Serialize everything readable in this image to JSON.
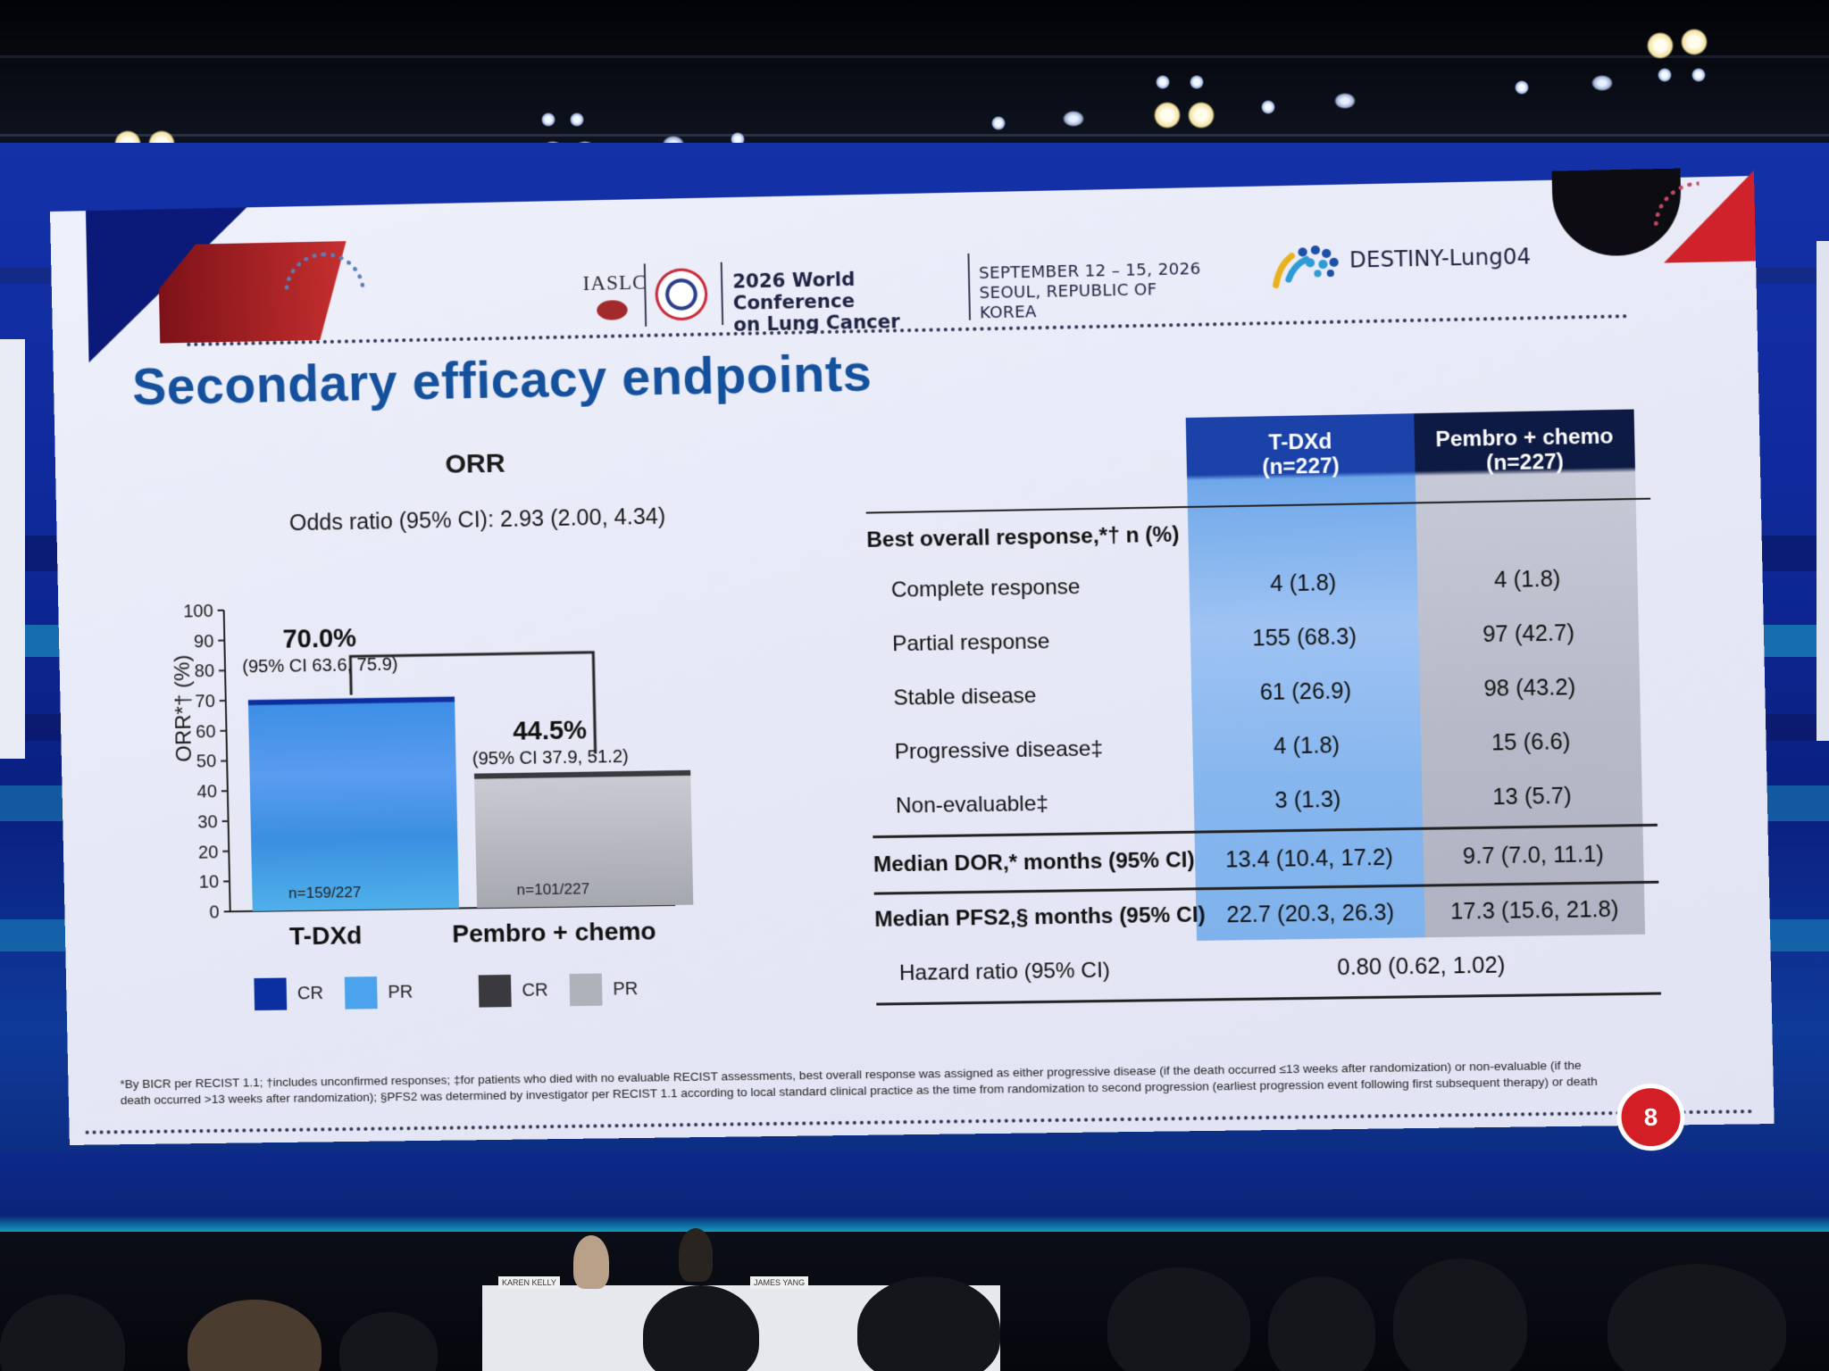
{
  "conference": {
    "society": "IASLC",
    "title_line1": "2026 World Conference",
    "title_line2": "on Lung Cancer",
    "date": "SEPTEMBER 12 – 15, 2026",
    "location": "SEOUL, REPUBLIC OF KOREA",
    "trial": "DESTINY-Lung04"
  },
  "slide": {
    "title": "Secondary efficacy endpoints",
    "page_number": "8"
  },
  "chart": {
    "title": "ORR",
    "odds_ratio": "Odds ratio (95% CI): 2.93 (2.00, 4.34)",
    "y_axis_title": "ORR*† (%)",
    "legend": {
      "cr": "CR",
      "pr": "PR"
    }
  },
  "chart_data": {
    "type": "bar",
    "title": "ORR",
    "ylabel": "ORR*† (%)",
    "ylim": [
      0,
      100
    ],
    "yticks": [
      "0",
      "10",
      "20",
      "30",
      "40",
      "50",
      "60",
      "70",
      "80",
      "90",
      "100"
    ],
    "categories": [
      "T-DXd",
      "Pembro + chemo"
    ],
    "series": [
      {
        "name": "CR",
        "values": [
          1.8,
          1.8
        ]
      },
      {
        "name": "PR",
        "values": [
          68.3,
          42.7
        ]
      }
    ],
    "totals": [
      70.0,
      44.5
    ],
    "value_labels": [
      "70.0%",
      "44.5%"
    ],
    "ci_labels": [
      "(95% CI 63.6, 75.9)",
      "(95% CI 37.9, 51.2)"
    ],
    "n_labels": [
      "n=159/227",
      "n=101/227"
    ],
    "colors": {
      "tdxd_cr": "#0b2fa0",
      "tdxd_pr": "#4aa3ec",
      "pembro_cr": "#3a3a3e",
      "pembro_pr": "#b0b2ba"
    }
  },
  "table": {
    "headers": [
      "T-DXd\n(n=227)",
      "Pembro + chemo\n(n=227)"
    ],
    "header_tdxd": [
      "T-DXd",
      "(n=227)"
    ],
    "header_pembro": [
      "Pembro + chemo",
      "(n=227)"
    ],
    "section_label": "Best overall response,*† n (%)",
    "rows": [
      {
        "label": "Complete response",
        "tdxd": "4 (1.8)",
        "pembro": "4 (1.8)"
      },
      {
        "label": "Partial response",
        "tdxd": "155 (68.3)",
        "pembro": "97 (42.7)"
      },
      {
        "label": "Stable disease",
        "tdxd": "61 (26.9)",
        "pembro": "98 (43.2)"
      },
      {
        "label": "Progressive disease‡",
        "tdxd": "4 (1.8)",
        "pembro": "15 (6.6)"
      },
      {
        "label": "Non-evaluable‡",
        "tdxd": "3 (1.3)",
        "pembro": "13 (5.7)"
      }
    ],
    "dor": {
      "label": "Median DOR,* months (95% CI)",
      "tdxd": "13.4 (10.4, 17.2)",
      "pembro": "9.7 (7.0, 11.1)"
    },
    "pfs2": {
      "label": "Median PFS2,§ months (95% CI)",
      "tdxd": "22.7 (20.3, 26.3)",
      "pembro": "17.3 (15.6, 21.8)"
    },
    "hazard": {
      "label": "Hazard ratio (95% CI)",
      "value": "0.80 (0.62, 1.02)"
    }
  },
  "footnote": "*By BICR per RECIST 1.1; †includes unconfirmed responses; ‡for patients who died with no evaluable RECIST assessments, best overall response was assigned as either progressive disease (if the death occurred ≤13 weeks after randomization) or non-evaluable (if the death occurred >13 weeks after randomization); §PFS2 was determined by investigator per RECIST 1.1 according to local standard clinical practice as the time from randomization to second progression (earliest progression event following first subsequent therapy) or death",
  "stage": {
    "nameplate_left": "KAREN KELLY",
    "nameplate_right": "JAMES YANG"
  }
}
